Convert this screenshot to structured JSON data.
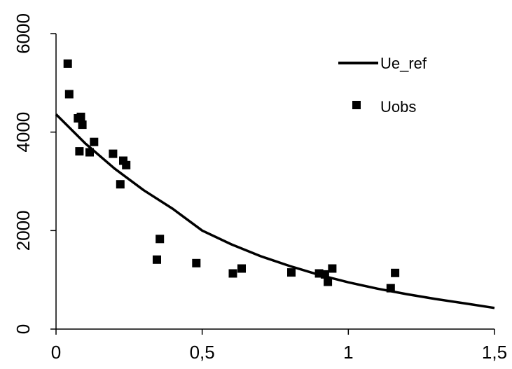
{
  "chart_data": {
    "type": "scatter",
    "title": "",
    "xlabel": "",
    "ylabel": "",
    "xlim": [
      0,
      1.5
    ],
    "ylim": [
      0,
      6000
    ],
    "x_ticks": [
      0,
      0.5,
      1,
      1.5
    ],
    "x_tick_labels": [
      "0",
      "0,5",
      "1",
      "1,5"
    ],
    "y_ticks": [
      0,
      2000,
      4000,
      6000
    ],
    "y_tick_labels": [
      "0",
      "2000",
      "4000",
      "6000"
    ],
    "grid": false,
    "legend_position": "top-right",
    "series": [
      {
        "name": "Ue_ref",
        "kind": "line",
        "color": "#000000",
        "x": [
          0,
          0.1,
          0.2,
          0.3,
          0.4,
          0.5,
          0.6,
          0.7,
          0.8,
          0.9,
          1.0,
          1.1,
          1.2,
          1.3,
          1.4,
          1.5
        ],
        "y": [
          4360,
          3770,
          3260,
          2820,
          2440,
          2000,
          1720,
          1480,
          1280,
          1100,
          950,
          820,
          710,
          610,
          520,
          430
        ]
      },
      {
        "name": "Uobs",
        "kind": "scatter",
        "marker": "square",
        "color": "#000000",
        "x": [
          0.04,
          0.045,
          0.075,
          0.08,
          0.085,
          0.09,
          0.115,
          0.13,
          0.195,
          0.22,
          0.23,
          0.24,
          0.345,
          0.355,
          0.48,
          0.605,
          0.635,
          0.805,
          0.9,
          0.92,
          0.93,
          0.945,
          1.145,
          1.16
        ],
        "y": [
          5390,
          4770,
          4280,
          3610,
          4310,
          4150,
          3590,
          3800,
          3560,
          2940,
          3420,
          3330,
          1410,
          1830,
          1340,
          1130,
          1230,
          1150,
          1130,
          1110,
          960,
          1230,
          830,
          1140
        ]
      }
    ]
  }
}
